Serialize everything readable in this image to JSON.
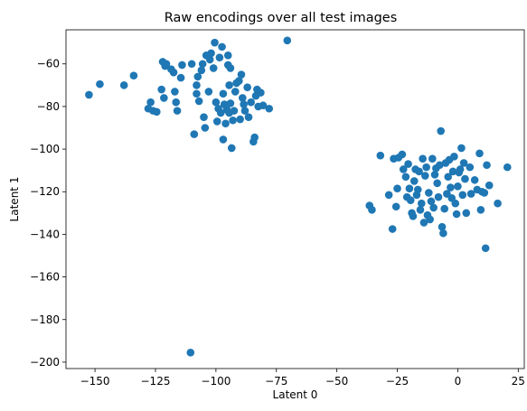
{
  "chart_data": {
    "type": "scatter",
    "title": "Raw encodings over all test images",
    "xlabel": "Latent 0",
    "ylabel": "Latent 1",
    "xlim": [
      -162,
      27.5
    ],
    "ylim": [
      -203,
      -44
    ],
    "xticks": [
      -150,
      -125,
      -100,
      -75,
      -50,
      -25,
      0,
      25
    ],
    "yticks": [
      -60,
      -80,
      -100,
      -120,
      -140,
      -160,
      -180,
      -200
    ],
    "xtick_labels": [
      "−150",
      "−125",
      "−100",
      "−75",
      "−50",
      "−25",
      "0",
      "25"
    ],
    "ytick_labels": [
      "−60",
      "−80",
      "−100",
      "−120",
      "−140",
      "−160",
      "−180",
      "−200"
    ],
    "grid": false,
    "marker_color": "#1f77b4",
    "series": [
      {
        "points": [
          [
            -152.5,
            -74.5
          ],
          [
            -148.0,
            -69.5
          ],
          [
            -138.0,
            -70.0
          ],
          [
            -134.0,
            -65.5
          ],
          [
            -128.0,
            -81.0
          ],
          [
            -127.0,
            -78.0
          ],
          [
            -126.0,
            -82.0
          ],
          [
            -124.5,
            -82.5
          ],
          [
            -122.5,
            -72.0
          ],
          [
            -122.0,
            -59.0
          ],
          [
            -121.0,
            -61.0
          ],
          [
            -120.5,
            -60.0
          ],
          [
            -121.5,
            -76.0
          ],
          [
            -118.5,
            -62.5
          ],
          [
            -117.5,
            -64.0
          ],
          [
            -117.0,
            -73.0
          ],
          [
            -116.5,
            -78.0
          ],
          [
            -116.0,
            -82.0
          ],
          [
            -114.5,
            -66.5
          ],
          [
            -114.0,
            -60.5
          ],
          [
            -110.0,
            -60.0
          ],
          [
            -109.0,
            -93.0
          ],
          [
            -108.0,
            -74.0
          ],
          [
            -108.0,
            -70.0
          ],
          [
            -107.5,
            -66.0
          ],
          [
            -107.0,
            -77.5
          ],
          [
            -106.0,
            -63.0
          ],
          [
            -105.5,
            -60.0
          ],
          [
            -105.0,
            -85.0
          ],
          [
            -104.5,
            -90.0
          ],
          [
            -104.0,
            -56.0
          ],
          [
            -103.0,
            -73.0
          ],
          [
            -102.5,
            -58.0
          ],
          [
            -102.0,
            -55.0
          ],
          [
            -101.0,
            -62.0
          ],
          [
            -100.5,
            -50.0
          ],
          [
            -100.0,
            -78.0
          ],
          [
            -99.5,
            -87.0
          ],
          [
            -99.0,
            -81.0
          ],
          [
            -98.5,
            -57.0
          ],
          [
            -98.0,
            -83.0
          ],
          [
            -97.5,
            -52.0
          ],
          [
            -97.0,
            -95.5
          ],
          [
            -97.0,
            -74.0
          ],
          [
            -96.5,
            -79.0
          ],
          [
            -96.0,
            -88.0
          ],
          [
            -95.5,
            -81.5
          ],
          [
            -95.0,
            -60.5
          ],
          [
            -95.0,
            -56.0
          ],
          [
            -94.5,
            -83.0
          ],
          [
            -94.0,
            -78.5
          ],
          [
            -94.5,
            -70.0
          ],
          [
            -94.0,
            -62.0
          ],
          [
            -93.5,
            -99.5
          ],
          [
            -93.0,
            -86.5
          ],
          [
            -92.5,
            -82.0
          ],
          [
            -92.0,
            -73.0
          ],
          [
            -91.5,
            -69.0
          ],
          [
            -90.5,
            -68.0
          ],
          [
            -90.0,
            -86.0
          ],
          [
            -89.5,
            -65.0
          ],
          [
            -89.0,
            -76.0
          ],
          [
            -88.5,
            -79.0
          ],
          [
            -88.0,
            -82.0
          ],
          [
            -87.0,
            -71.0
          ],
          [
            -86.5,
            -85.0
          ],
          [
            -85.5,
            -78.0
          ],
          [
            -84.5,
            -96.5
          ],
          [
            -84.0,
            -94.5
          ],
          [
            -83.5,
            -75.0
          ],
          [
            -83.0,
            -72.0
          ],
          [
            -82.5,
            -80.0
          ],
          [
            -81.5,
            -73.5
          ],
          [
            -80.5,
            -79.5
          ],
          [
            -78.0,
            -81.0
          ],
          [
            -70.5,
            -49.0
          ],
          [
            -110.5,
            -195.5
          ],
          [
            -36.5,
            -126.5
          ],
          [
            -35.5,
            -128.5
          ],
          [
            -32.0,
            -103.0
          ],
          [
            -28.5,
            -121.5
          ],
          [
            -27.0,
            -137.5
          ],
          [
            -26.5,
            -104.5
          ],
          [
            -25.5,
            -127.0
          ],
          [
            -25.0,
            -118.5
          ],
          [
            -24.5,
            -104.0
          ],
          [
            -23.0,
            -102.5
          ],
          [
            -22.5,
            -109.5
          ],
          [
            -21.5,
            -113.0
          ],
          [
            -21.0,
            -122.5
          ],
          [
            -20.5,
            -107.0
          ],
          [
            -20.0,
            -118.5
          ],
          [
            -19.5,
            -124.0
          ],
          [
            -19.0,
            -130.0
          ],
          [
            -18.5,
            -131.5
          ],
          [
            -18.0,
            -115.0
          ],
          [
            -17.5,
            -109.5
          ],
          [
            -17.0,
            -121.5
          ],
          [
            -16.5,
            -119.0
          ],
          [
            -16.0,
            -110.5
          ],
          [
            -15.5,
            -128.5
          ],
          [
            -15.0,
            -125.5
          ],
          [
            -14.5,
            -104.5
          ],
          [
            -14.0,
            -134.5
          ],
          [
            -13.5,
            -112.5
          ],
          [
            -13.0,
            -108.5
          ],
          [
            -12.5,
            -131.0
          ],
          [
            -12.0,
            -120.5
          ],
          [
            -11.5,
            -133.0
          ],
          [
            -11.0,
            -124.5
          ],
          [
            -10.5,
            -104.5
          ],
          [
            -10.0,
            -127.5
          ],
          [
            -9.5,
            -112.0
          ],
          [
            -9.0,
            -109.0
          ],
          [
            -8.5,
            -116.0
          ],
          [
            -8.0,
            -122.5
          ],
          [
            -7.5,
            -107.5
          ],
          [
            -7.0,
            -91.5
          ],
          [
            -6.5,
            -136.5
          ],
          [
            -6.0,
            -139.5
          ],
          [
            -5.5,
            -128.0
          ],
          [
            -5.0,
            -106.5
          ],
          [
            -4.5,
            -121.0
          ],
          [
            -4.0,
            -113.0
          ],
          [
            -3.5,
            -105.0
          ],
          [
            -3.0,
            -118.0
          ],
          [
            -2.5,
            -123.0
          ],
          [
            -2.0,
            -110.5
          ],
          [
            -1.5,
            -103.5
          ],
          [
            -1.0,
            -125.5
          ],
          [
            -0.5,
            -130.5
          ],
          [
            0.0,
            -117.5
          ],
          [
            0.5,
            -111.0
          ],
          [
            1.0,
            -109.5
          ],
          [
            1.5,
            -99.5
          ],
          [
            2.0,
            -121.5
          ],
          [
            2.5,
            -106.5
          ],
          [
            3.0,
            -114.0
          ],
          [
            3.5,
            -130.0
          ],
          [
            5.0,
            -108.5
          ],
          [
            5.5,
            -121.0
          ],
          [
            7.0,
            -114.5
          ],
          [
            8.0,
            -119.0
          ],
          [
            9.0,
            -102.0
          ],
          [
            9.5,
            -128.5
          ],
          [
            10.0,
            -120.0
          ],
          [
            11.0,
            -120.5
          ],
          [
            11.5,
            -146.5
          ],
          [
            12.0,
            -107.5
          ],
          [
            13.0,
            -117.0
          ],
          [
            16.5,
            -125.5
          ],
          [
            20.5,
            -108.5
          ]
        ]
      }
    ]
  }
}
